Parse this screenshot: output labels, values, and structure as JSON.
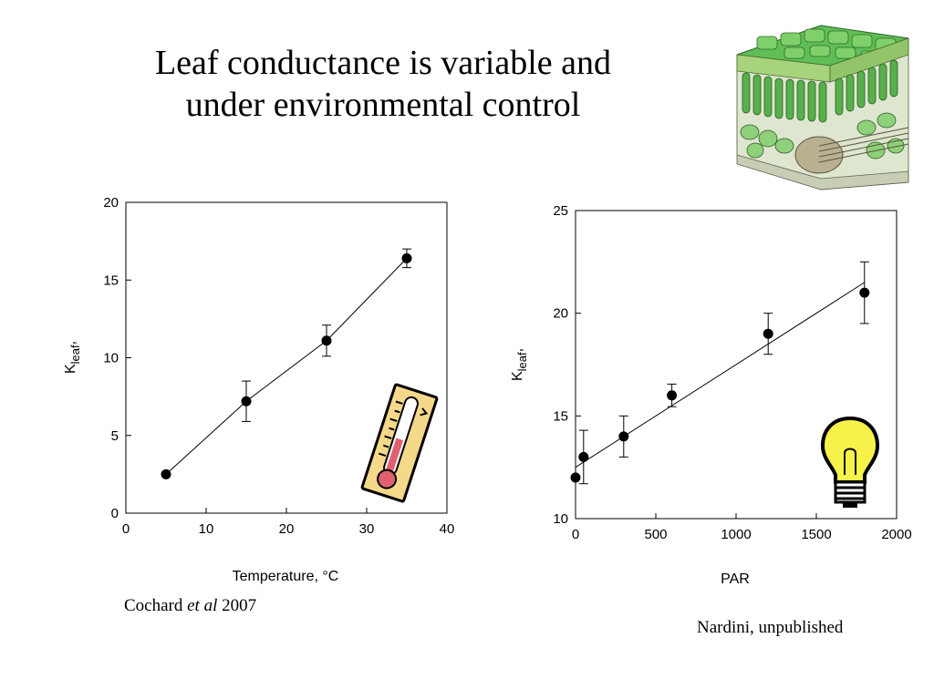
{
  "slide": {
    "title_line1": "Leaf conductance is variable and",
    "title_line2": "under environmental control"
  },
  "credits": {
    "left_author": "Cochard ",
    "left_etal": "et al",
    "left_year": " 2007",
    "right": "Nardini, unpublished"
  },
  "icons": [
    "leaf-cross-section-icon",
    "thermometer-icon",
    "light-bulb-icon"
  ],
  "chart_data": [
    {
      "type": "line",
      "xlabel": "Temperature, °C",
      "ylabel_main": "K",
      "ylabel_sub": "leaf",
      "ylabel_tail": ",",
      "xlim": [
        0,
        40
      ],
      "ylim": [
        0,
        20
      ],
      "xticks": [
        0,
        10,
        20,
        30,
        40
      ],
      "yticks": [
        0,
        5,
        10,
        15,
        20
      ],
      "grid": false,
      "series": [
        {
          "x": [
            5,
            15,
            25,
            35
          ],
          "y": [
            2.5,
            7.2,
            11.1,
            16.4
          ],
          "error": [
            0,
            1.3,
            1.0,
            0.6
          ],
          "line": "connected",
          "marker": "filled-circle",
          "color": "#000000"
        }
      ]
    },
    {
      "type": "scatter",
      "xlabel": "PAR",
      "ylabel_main": "K",
      "ylabel_sub": "leaf",
      "ylabel_tail": ",",
      "xlim": [
        0,
        2000
      ],
      "ylim": [
        10,
        25
      ],
      "xticks": [
        0,
        500,
        1000,
        1500,
        2000
      ],
      "yticks": [
        10,
        15,
        20,
        25
      ],
      "grid": false,
      "series": [
        {
          "x": [
            0,
            50,
            300,
            600,
            1200,
            1800
          ],
          "y": [
            12.0,
            13.0,
            14.0,
            16.0,
            19.0,
            21.0
          ],
          "error": [
            0,
            1.3,
            1.0,
            0.55,
            1.0,
            1.5
          ],
          "line": "none",
          "marker": "filled-circle",
          "color": "#000000"
        }
      ],
      "trendline": {
        "x": [
          0,
          1800
        ],
        "y": [
          12.5,
          21.5
        ]
      }
    }
  ]
}
